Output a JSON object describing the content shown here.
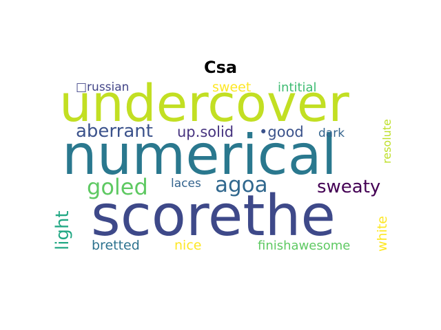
{
  "title": "Csa",
  "words": [
    {
      "text": "undercover",
      "color": "#c2df23"
    },
    {
      "text": "numerical",
      "color": "#2a788e"
    },
    {
      "text": "scorethe",
      "color": "#3e4989"
    },
    {
      "text": "aberrant",
      "color": "#3b528b"
    },
    {
      "text": "up.solid",
      "color": "#46337f"
    },
    {
      "text": "•good",
      "color": "#3b528b"
    },
    {
      "text": "dark",
      "color": "#33638d"
    },
    {
      "text": "goled",
      "color": "#5ec962"
    },
    {
      "text": "agoa",
      "color": "#31688e"
    },
    {
      "text": "laces",
      "color": "#33638d"
    },
    {
      "text": "sweaty",
      "color": "#440154"
    },
    {
      "text": "light",
      "color": "#22a884"
    },
    {
      "text": "bretted",
      "color": "#2c728e"
    },
    {
      "text": "nice",
      "color": "#fde725"
    },
    {
      "text": "finishawesome",
      "color": "#5ec962"
    },
    {
      "text": "white",
      "color": "#fde725"
    },
    {
      "text": "resolute",
      "color": "#bddf26"
    },
    {
      "text": "sweet",
      "color": "#fde725"
    },
    {
      "text": "intitial",
      "color": "#3fbc73"
    },
    {
      "text": "□russian",
      "color": "#414487"
    }
  ]
}
